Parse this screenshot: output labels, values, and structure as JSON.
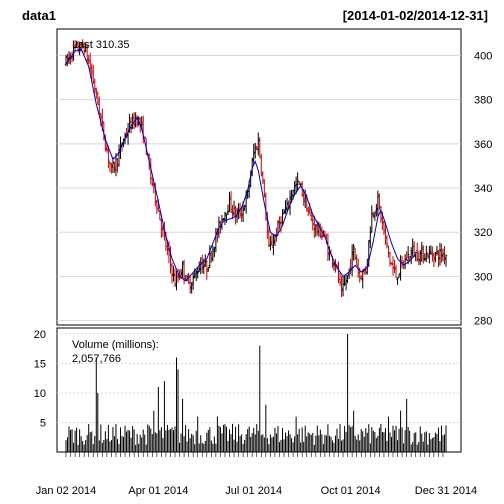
{
  "chart_data": {
    "type": "ohlc",
    "title": "data1",
    "date_range": "[2014-01-02/2014-12-31]",
    "price_panel": {
      "last_label": "Last 310.35",
      "y_ticks": [
        280,
        300,
        320,
        340,
        360,
        380,
        400
      ],
      "ylim": [
        278,
        412
      ],
      "series": {
        "name": "price",
        "bar_up_color": "#000000",
        "bar_down_color": "#d00000",
        "moving_average_color": "#0000cc"
      },
      "anchors": [
        {
          "d": 0,
          "v": 397
        },
        {
          "d": 6,
          "v": 403
        },
        {
          "d": 12,
          "v": 404
        },
        {
          "d": 17,
          "v": 392
        },
        {
          "d": 22,
          "v": 375
        },
        {
          "d": 26,
          "v": 360
        },
        {
          "d": 30,
          "v": 348
        },
        {
          "d": 34,
          "v": 353
        },
        {
          "d": 38,
          "v": 362
        },
        {
          "d": 42,
          "v": 368
        },
        {
          "d": 47,
          "v": 372
        },
        {
          "d": 51,
          "v": 365
        },
        {
          "d": 56,
          "v": 345
        },
        {
          "d": 60,
          "v": 333
        },
        {
          "d": 64,
          "v": 320
        },
        {
          "d": 68,
          "v": 308
        },
        {
          "d": 72,
          "v": 297
        },
        {
          "d": 77,
          "v": 304
        },
        {
          "d": 81,
          "v": 296
        },
        {
          "d": 85,
          "v": 300
        },
        {
          "d": 89,
          "v": 306
        },
        {
          "d": 93,
          "v": 304
        },
        {
          "d": 97,
          "v": 313
        },
        {
          "d": 101,
          "v": 322
        },
        {
          "d": 104,
          "v": 328
        },
        {
          "d": 108,
          "v": 333
        },
        {
          "d": 112,
          "v": 328
        },
        {
          "d": 116,
          "v": 329
        },
        {
          "d": 120,
          "v": 337
        },
        {
          "d": 124,
          "v": 356
        },
        {
          "d": 127,
          "v": 361
        },
        {
          "d": 130,
          "v": 343
        },
        {
          "d": 134,
          "v": 312
        },
        {
          "d": 138,
          "v": 318
        },
        {
          "d": 142,
          "v": 326
        },
        {
          "d": 146,
          "v": 331
        },
        {
          "d": 150,
          "v": 340
        },
        {
          "d": 154,
          "v": 342
        },
        {
          "d": 158,
          "v": 334
        },
        {
          "d": 162,
          "v": 325
        },
        {
          "d": 166,
          "v": 321
        },
        {
          "d": 170,
          "v": 319
        },
        {
          "d": 174,
          "v": 310
        },
        {
          "d": 178,
          "v": 306
        },
        {
          "d": 182,
          "v": 292
        },
        {
          "d": 186,
          "v": 300
        },
        {
          "d": 190,
          "v": 312
        },
        {
          "d": 194,
          "v": 300
        },
        {
          "d": 198,
          "v": 303
        },
        {
          "d": 202,
          "v": 328
        },
        {
          "d": 206,
          "v": 334
        },
        {
          "d": 210,
          "v": 320
        },
        {
          "d": 214,
          "v": 307
        },
        {
          "d": 218,
          "v": 300
        },
        {
          "d": 222,
          "v": 305
        },
        {
          "d": 226,
          "v": 309
        },
        {
          "d": 229,
          "v": 312
        },
        {
          "d": 231,
          "v": 310
        }
      ],
      "moving_average": [
        {
          "d": 0,
          "v": 396
        },
        {
          "d": 6,
          "v": 402
        },
        {
          "d": 10,
          "v": 403
        },
        {
          "d": 15,
          "v": 395
        },
        {
          "d": 20,
          "v": 378
        },
        {
          "d": 26,
          "v": 362
        },
        {
          "d": 31,
          "v": 353
        },
        {
          "d": 34,
          "v": 355
        },
        {
          "d": 38,
          "v": 361
        },
        {
          "d": 43,
          "v": 368
        },
        {
          "d": 47,
          "v": 372
        },
        {
          "d": 50,
          "v": 367
        },
        {
          "d": 55,
          "v": 352
        },
        {
          "d": 60,
          "v": 337
        },
        {
          "d": 65,
          "v": 321
        },
        {
          "d": 70,
          "v": 308
        },
        {
          "d": 75,
          "v": 300
        },
        {
          "d": 79,
          "v": 298
        },
        {
          "d": 83,
          "v": 301
        },
        {
          "d": 88,
          "v": 305
        },
        {
          "d": 93,
          "v": 308
        },
        {
          "d": 97,
          "v": 315
        },
        {
          "d": 101,
          "v": 322
        },
        {
          "d": 104,
          "v": 325
        },
        {
          "d": 108,
          "v": 326
        },
        {
          "d": 112,
          "v": 327
        },
        {
          "d": 116,
          "v": 331
        },
        {
          "d": 120,
          "v": 339
        },
        {
          "d": 123,
          "v": 349
        },
        {
          "d": 125,
          "v": 352
        },
        {
          "d": 127,
          "v": 348
        },
        {
          "d": 131,
          "v": 333
        },
        {
          "d": 135,
          "v": 320
        },
        {
          "d": 139,
          "v": 318
        },
        {
          "d": 143,
          "v": 323
        },
        {
          "d": 147,
          "v": 331
        },
        {
          "d": 151,
          "v": 337
        },
        {
          "d": 155,
          "v": 341
        },
        {
          "d": 159,
          "v": 336
        },
        {
          "d": 163,
          "v": 328
        },
        {
          "d": 167,
          "v": 323
        },
        {
          "d": 171,
          "v": 318
        },
        {
          "d": 175,
          "v": 310
        },
        {
          "d": 179,
          "v": 304
        },
        {
          "d": 183,
          "v": 300
        },
        {
          "d": 187,
          "v": 302
        },
        {
          "d": 191,
          "v": 305
        },
        {
          "d": 195,
          "v": 302
        },
        {
          "d": 199,
          "v": 304
        },
        {
          "d": 203,
          "v": 316
        },
        {
          "d": 206,
          "v": 327
        },
        {
          "d": 208,
          "v": 330
        },
        {
          "d": 211,
          "v": 324
        },
        {
          "d": 215,
          "v": 315
        },
        {
          "d": 219,
          "v": 308
        },
        {
          "d": 223,
          "v": 305
        },
        {
          "d": 227,
          "v": 307
        },
        {
          "d": 231,
          "v": 310
        }
      ]
    },
    "volume_panel": {
      "label": "Volume (millions):",
      "last_value": "2,057,766",
      "y_ticks": [
        5,
        10,
        15,
        20
      ],
      "ylim": [
        0,
        21
      ],
      "bar_color": "#000000",
      "baseline": 2.4,
      "spikes": [
        {
          "d": 20,
          "v": 16
        },
        {
          "d": 21,
          "v": 10
        },
        {
          "d": 58,
          "v": 7
        },
        {
          "d": 61,
          "v": 11
        },
        {
          "d": 65,
          "v": 12
        },
        {
          "d": 73,
          "v": 16
        },
        {
          "d": 74,
          "v": 14
        },
        {
          "d": 77,
          "v": 9
        },
        {
          "d": 87,
          "v": 6
        },
        {
          "d": 100,
          "v": 6
        },
        {
          "d": 128,
          "v": 18
        },
        {
          "d": 132,
          "v": 8
        },
        {
          "d": 152,
          "v": 6
        },
        {
          "d": 186,
          "v": 20
        },
        {
          "d": 190,
          "v": 7
        },
        {
          "d": 213,
          "v": 6
        },
        {
          "d": 221,
          "v": 7
        },
        {
          "d": 225,
          "v": 9
        }
      ]
    },
    "x_ticks": [
      {
        "d": 0,
        "label": "Jan 02 2014"
      },
      {
        "d": 61,
        "label": "Apr 01 2014"
      },
      {
        "d": 124,
        "label": "Jul 01 2014"
      },
      {
        "d": 188,
        "label": "Oct 01 2014"
      },
      {
        "d": 251,
        "label": "Dec 31 2014"
      }
    ],
    "trading_days": 252,
    "grid": true
  }
}
